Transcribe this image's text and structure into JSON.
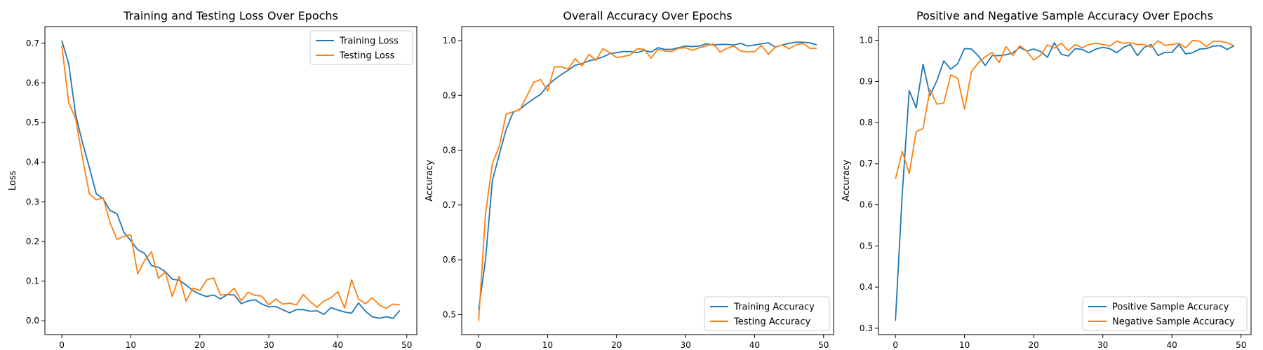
{
  "colors": {
    "series1": "#1f77b4",
    "series2": "#ff7f0e"
  },
  "chart_data": [
    {
      "type": "line",
      "title": "Training and Testing Loss Over Epochs",
      "xlabel": "Epoch",
      "ylabel": "Loss",
      "xlim": [
        -2.45,
        51.45
      ],
      "ylim": [
        -0.035,
        0.742
      ],
      "xticks": [
        0,
        10,
        20,
        30,
        40,
        50
      ],
      "yticks": [
        0.0,
        0.1,
        0.2,
        0.3,
        0.4,
        0.5,
        0.6,
        0.7
      ],
      "ytick_labels": [
        "0.0",
        "0.1",
        "0.2",
        "0.3",
        "0.4",
        "0.5",
        "0.6",
        "0.7"
      ],
      "grid": false,
      "legend": "upper-right",
      "series": [
        {
          "name": "Training Loss",
          "values": [
            0.707,
            0.648,
            0.52,
            0.449,
            0.386,
            0.32,
            0.308,
            0.278,
            0.27,
            0.223,
            0.202,
            0.179,
            0.17,
            0.139,
            0.135,
            0.124,
            0.105,
            0.102,
            0.09,
            0.076,
            0.067,
            0.061,
            0.065,
            0.055,
            0.066,
            0.065,
            0.043,
            0.05,
            0.053,
            0.042,
            0.035,
            0.036,
            0.028,
            0.02,
            0.028,
            0.028,
            0.024,
            0.025,
            0.016,
            0.033,
            0.027,
            0.022,
            0.019,
            0.045,
            0.024,
            0.01,
            0.006,
            0.01,
            0.006,
            0.026
          ]
        },
        {
          "name": "Testing Loss",
          "values": [
            0.695,
            0.55,
            0.51,
            0.41,
            0.32,
            0.305,
            0.31,
            0.247,
            0.205,
            0.213,
            0.217,
            0.118,
            0.152,
            0.174,
            0.107,
            0.123,
            0.061,
            0.112,
            0.049,
            0.082,
            0.076,
            0.103,
            0.108,
            0.065,
            0.066,
            0.082,
            0.05,
            0.072,
            0.064,
            0.062,
            0.04,
            0.055,
            0.042,
            0.044,
            0.04,
            0.066,
            0.048,
            0.034,
            0.05,
            0.058,
            0.073,
            0.032,
            0.103,
            0.055,
            0.043,
            0.058,
            0.04,
            0.031,
            0.042,
            0.04
          ]
        }
      ]
    },
    {
      "type": "line",
      "title": "Overall Accuracy Over Epochs",
      "xlabel": "Epoch",
      "ylabel": "Accuracy",
      "xlim": [
        -2.45,
        51.45
      ],
      "ylim": [
        0.4635,
        1.0255
      ],
      "xticks": [
        0,
        10,
        20,
        30,
        40,
        50
      ],
      "yticks": [
        0.5,
        0.6,
        0.7,
        0.8,
        0.9,
        1.0
      ],
      "ytick_labels": [
        "0.5",
        "0.6",
        "0.7",
        "0.8",
        "0.9",
        "1.0"
      ],
      "grid": false,
      "legend": "lower-right",
      "series": [
        {
          "name": "Training Accuracy",
          "values": [
            0.509,
            0.6,
            0.745,
            0.792,
            0.838,
            0.869,
            0.875,
            0.885,
            0.894,
            0.902,
            0.918,
            0.929,
            0.938,
            0.946,
            0.955,
            0.958,
            0.963,
            0.966,
            0.97,
            0.976,
            0.978,
            0.98,
            0.98,
            0.978,
            0.982,
            0.979,
            0.987,
            0.984,
            0.984,
            0.987,
            0.99,
            0.989,
            0.99,
            0.994,
            0.992,
            0.993,
            0.993,
            0.992,
            0.995,
            0.99,
            0.992,
            0.994,
            0.996,
            0.988,
            0.992,
            0.995,
            0.997,
            0.997,
            0.996,
            0.992
          ]
        },
        {
          "name": "Testing Accuracy",
          "values": [
            0.488,
            0.683,
            0.776,
            0.807,
            0.866,
            0.87,
            0.874,
            0.899,
            0.924,
            0.929,
            0.908,
            0.952,
            0.952,
            0.948,
            0.967,
            0.954,
            0.975,
            0.964,
            0.985,
            0.978,
            0.969,
            0.971,
            0.974,
            0.985,
            0.984,
            0.968,
            0.984,
            0.981,
            0.98,
            0.986,
            0.987,
            0.982,
            0.987,
            0.99,
            0.994,
            0.979,
            0.986,
            0.99,
            0.981,
            0.979,
            0.98,
            0.991,
            0.975,
            0.988,
            0.992,
            0.985,
            0.992,
            0.995,
            0.986,
            0.986
          ]
        }
      ]
    },
    {
      "type": "line",
      "title": "Positive and Negative Sample Accuracy Over Epochs",
      "xlabel": "Epoch",
      "ylabel": "Accuracy",
      "xlim": [
        -2.45,
        51.45
      ],
      "ylim": [
        0.2845,
        1.0335
      ],
      "xticks": [
        0,
        10,
        20,
        30,
        40,
        50
      ],
      "yticks": [
        0.3,
        0.4,
        0.5,
        0.6,
        0.7,
        0.8,
        0.9,
        1.0
      ],
      "ytick_labels": [
        "0.3",
        "0.4",
        "0.5",
        "0.6",
        "0.7",
        "0.8",
        "0.9",
        "1.0"
      ],
      "grid": false,
      "legend": "lower-right",
      "series": [
        {
          "name": "Positive Sample Accuracy",
          "values": [
            0.318,
            0.63,
            0.878,
            0.836,
            0.942,
            0.866,
            0.902,
            0.95,
            0.93,
            0.943,
            0.98,
            0.979,
            0.962,
            0.939,
            0.963,
            0.963,
            0.965,
            0.97,
            0.983,
            0.974,
            0.979,
            0.973,
            0.959,
            0.994,
            0.966,
            0.962,
            0.98,
            0.978,
            0.97,
            0.979,
            0.983,
            0.98,
            0.97,
            0.983,
            0.99,
            0.963,
            0.983,
            0.99,
            0.963,
            0.971,
            0.971,
            0.99,
            0.967,
            0.97,
            0.979,
            0.98,
            0.986,
            0.987,
            0.978,
            0.987
          ]
        },
        {
          "name": "Negative Sample Accuracy",
          "values": [
            0.663,
            0.73,
            0.676,
            0.778,
            0.786,
            0.88,
            0.845,
            0.848,
            0.916,
            0.908,
            0.833,
            0.924,
            0.946,
            0.96,
            0.971,
            0.946,
            0.985,
            0.963,
            0.987,
            0.974,
            0.952,
            0.964,
            0.989,
            0.981,
            0.993,
            0.975,
            0.99,
            0.982,
            0.99,
            0.993,
            0.99,
            0.986,
            0.998,
            0.993,
            0.994,
            0.99,
            0.99,
            0.983,
            0.999,
            0.988,
            0.99,
            0.993,
            0.982,
            1.0,
            0.998,
            0.985,
            0.998,
            0.998,
            0.994,
            0.987
          ]
        }
      ]
    }
  ]
}
